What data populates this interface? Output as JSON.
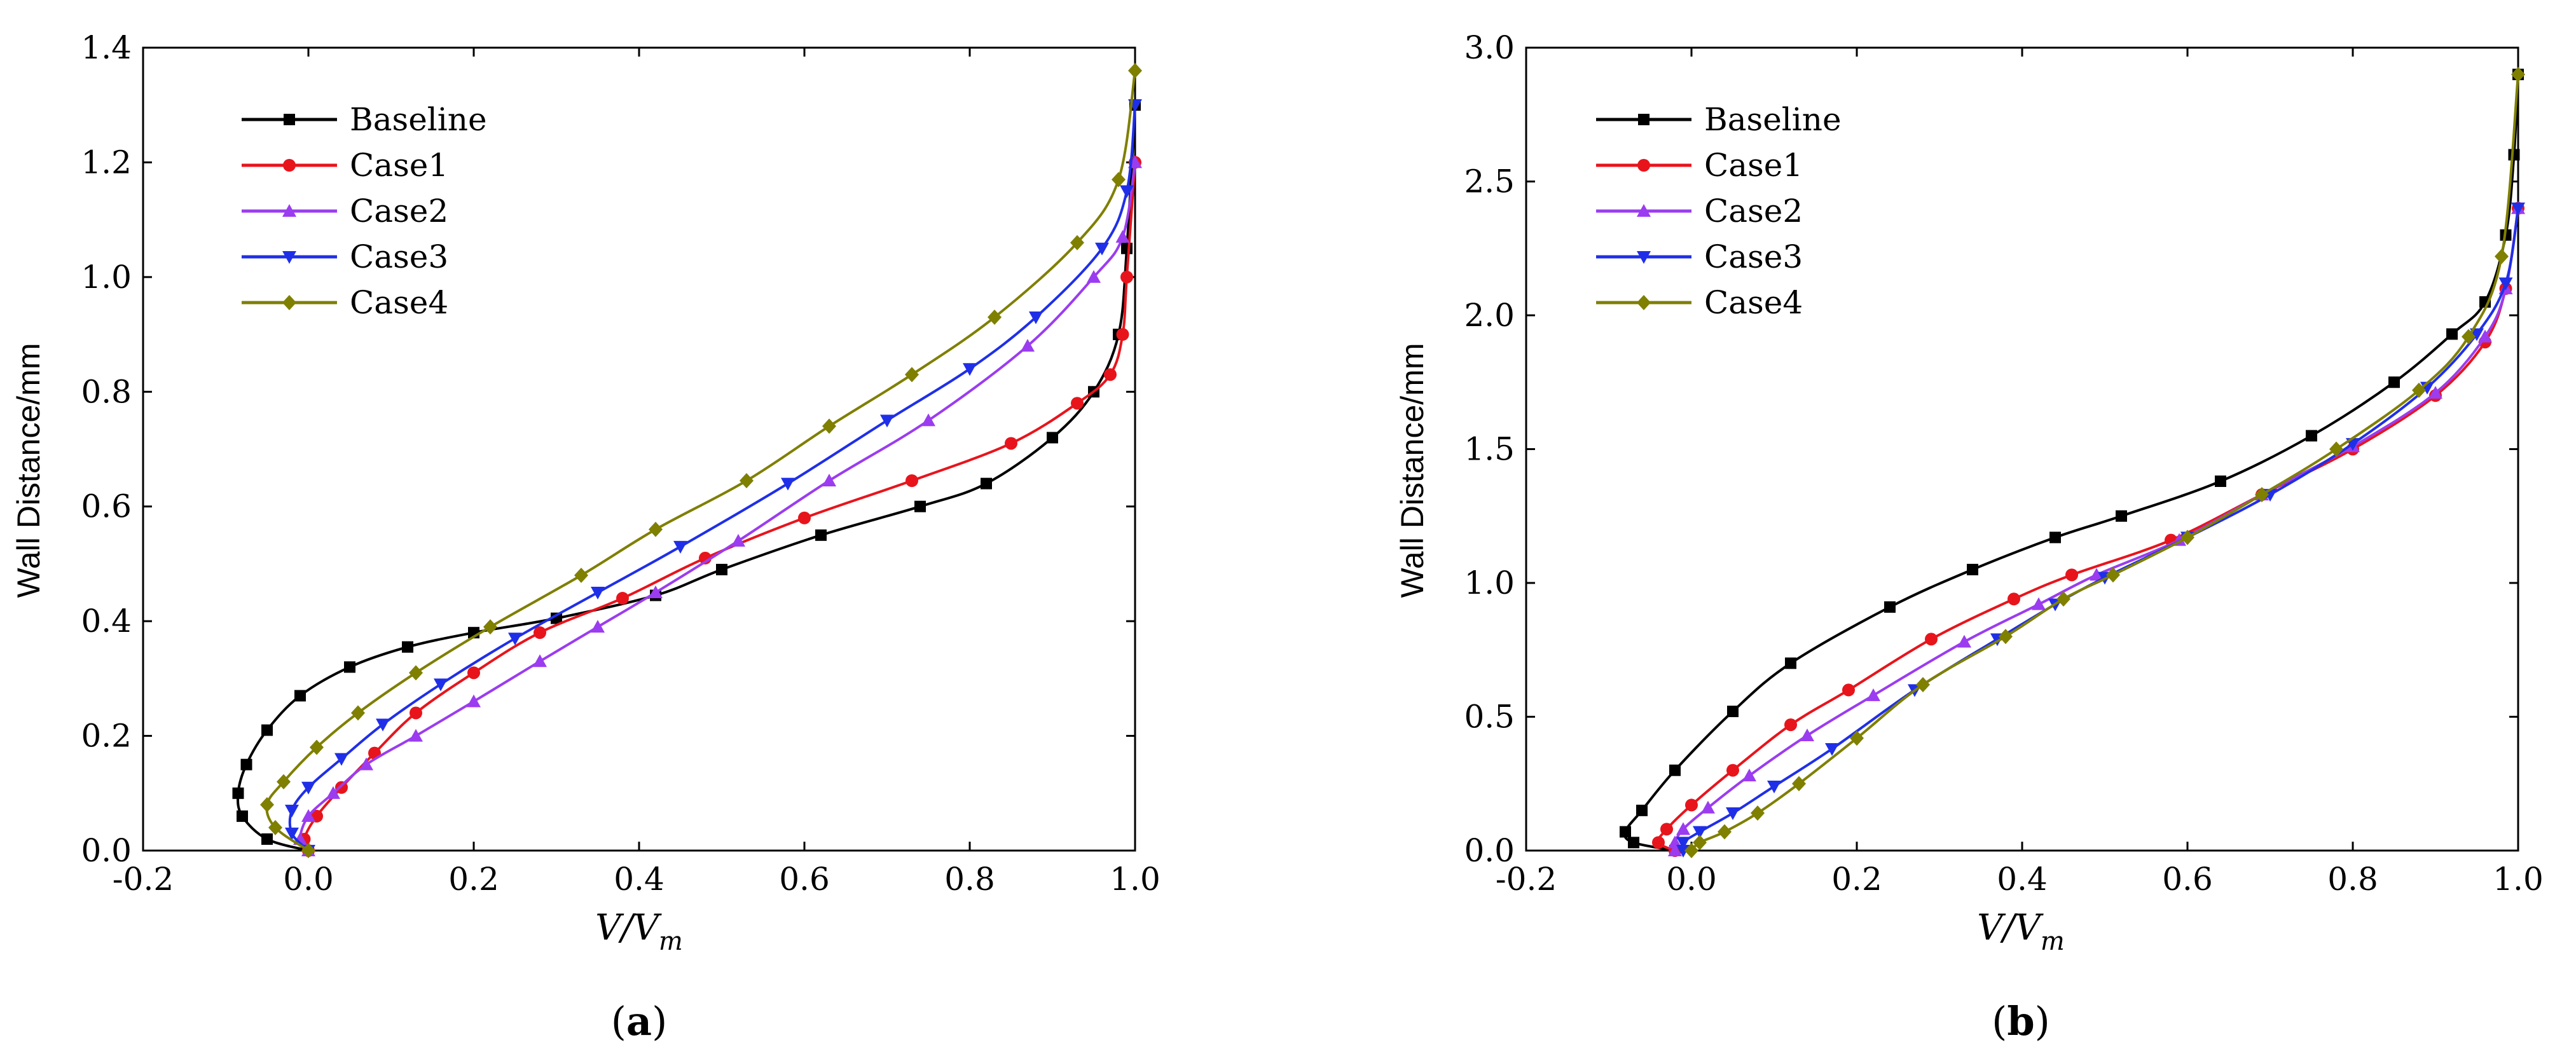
{
  "colors": {
    "Baseline": "#000000",
    "Case1": "#e8141c",
    "Case2": "#9b3cf0",
    "Case3": "#1f2fe8",
    "Case4": "#7f7f00"
  },
  "markers": {
    "Baseline": "square",
    "Case1": "circle",
    "Case2": "triangle-up",
    "Case3": "triangle-down",
    "Case4": "diamond"
  },
  "chart_data": [
    {
      "type": "line",
      "panel_label": "a",
      "xlabel_main": "V/V",
      "xlabel_sub": "m",
      "ylabel": "Wall Distance/mm",
      "xlim": [
        -0.2,
        1.0
      ],
      "ylim": [
        0.0,
        1.4
      ],
      "xticks": [
        -0.2,
        0.0,
        0.2,
        0.4,
        0.6,
        0.8,
        1.0
      ],
      "xtick_labels": [
        "-0.2",
        "0.0",
        "0.2",
        "0.4",
        "0.6",
        "0.8",
        "1.0"
      ],
      "yticks": [
        0.0,
        0.2,
        0.4,
        0.6,
        0.8,
        1.0,
        1.2,
        1.4
      ],
      "ytick_labels": [
        "0.0",
        "0.2",
        "0.4",
        "0.6",
        "0.8",
        "1.0",
        "1.2",
        "1.4"
      ],
      "legend_position": "top-left",
      "series": [
        {
          "name": "Baseline",
          "x": [
            0.0,
            -0.05,
            -0.08,
            -0.085,
            -0.075,
            -0.05,
            -0.01,
            0.05,
            0.12,
            0.2,
            0.3,
            0.42,
            0.5,
            0.62,
            0.74,
            0.82,
            0.9,
            0.95,
            0.98,
            0.99,
            1.0
          ],
          "y": [
            0.0,
            0.02,
            0.06,
            0.1,
            0.15,
            0.21,
            0.27,
            0.32,
            0.355,
            0.38,
            0.405,
            0.445,
            0.49,
            0.55,
            0.6,
            0.64,
            0.72,
            0.8,
            0.9,
            1.05,
            1.3
          ]
        },
        {
          "name": "Case1",
          "x": [
            0.0,
            -0.005,
            0.01,
            0.04,
            0.08,
            0.13,
            0.2,
            0.28,
            0.38,
            0.48,
            0.6,
            0.73,
            0.85,
            0.93,
            0.97,
            0.985,
            0.99,
            1.0
          ],
          "y": [
            0.0,
            0.02,
            0.06,
            0.11,
            0.17,
            0.24,
            0.31,
            0.38,
            0.44,
            0.51,
            0.58,
            0.645,
            0.71,
            0.78,
            0.83,
            0.9,
            1.0,
            1.2
          ]
        },
        {
          "name": "Case2",
          "x": [
            0.0,
            -0.01,
            0.0,
            0.03,
            0.07,
            0.13,
            0.2,
            0.28,
            0.35,
            0.42,
            0.52,
            0.63,
            0.75,
            0.87,
            0.95,
            0.985,
            1.0
          ],
          "y": [
            0.0,
            0.02,
            0.06,
            0.1,
            0.15,
            0.2,
            0.26,
            0.33,
            0.39,
            0.45,
            0.54,
            0.645,
            0.75,
            0.88,
            1.0,
            1.07,
            1.2
          ]
        },
        {
          "name": "Case3",
          "x": [
            0.0,
            -0.02,
            -0.02,
            0.0,
            0.04,
            0.09,
            0.16,
            0.25,
            0.35,
            0.45,
            0.58,
            0.7,
            0.8,
            0.88,
            0.96,
            0.99,
            1.0
          ],
          "y": [
            0.0,
            0.03,
            0.07,
            0.11,
            0.16,
            0.22,
            0.29,
            0.37,
            0.45,
            0.53,
            0.64,
            0.75,
            0.84,
            0.93,
            1.05,
            1.15,
            1.3
          ]
        },
        {
          "name": "Case4",
          "x": [
            0.0,
            -0.04,
            -0.05,
            -0.03,
            0.01,
            0.06,
            0.13,
            0.22,
            0.33,
            0.42,
            0.53,
            0.63,
            0.73,
            0.83,
            0.93,
            0.98,
            1.0
          ],
          "y": [
            0.0,
            0.04,
            0.08,
            0.12,
            0.18,
            0.24,
            0.31,
            0.39,
            0.48,
            0.56,
            0.645,
            0.74,
            0.83,
            0.93,
            1.06,
            1.17,
            1.36
          ]
        }
      ]
    },
    {
      "type": "line",
      "panel_label": "b",
      "xlabel_main": "V/V",
      "xlabel_sub": "m",
      "ylabel": "Wall Distance/mm",
      "xlim": [
        -0.2,
        1.0
      ],
      "ylim": [
        0.0,
        3.0
      ],
      "xticks": [
        -0.2,
        0.0,
        0.2,
        0.4,
        0.6,
        0.8,
        1.0
      ],
      "xtick_labels": [
        "-0.2",
        "0.0",
        "0.2",
        "0.4",
        "0.6",
        "0.8",
        "1.0"
      ],
      "yticks": [
        0.0,
        0.5,
        1.0,
        1.5,
        2.0,
        2.5,
        3.0
      ],
      "ytick_labels": [
        "0.0",
        "0.5",
        "1.0",
        "1.5",
        "2.0",
        "2.5",
        "3.0"
      ],
      "legend_position": "top-left",
      "series": [
        {
          "name": "Baseline",
          "x": [
            -0.02,
            -0.07,
            -0.08,
            -0.06,
            -0.02,
            0.05,
            0.12,
            0.24,
            0.34,
            0.44,
            0.52,
            0.64,
            0.75,
            0.85,
            0.92,
            0.96,
            0.985,
            0.995,
            1.0
          ],
          "y": [
            0.0,
            0.03,
            0.07,
            0.15,
            0.3,
            0.52,
            0.7,
            0.91,
            1.05,
            1.17,
            1.25,
            1.38,
            1.55,
            1.75,
            1.93,
            2.05,
            2.3,
            2.6,
            2.9
          ]
        },
        {
          "name": "Case1",
          "x": [
            -0.02,
            -0.04,
            -0.03,
            0.0,
            0.05,
            0.12,
            0.19,
            0.29,
            0.39,
            0.46,
            0.58,
            0.69,
            0.8,
            0.9,
            0.96,
            0.985,
            1.0
          ],
          "y": [
            0.0,
            0.03,
            0.08,
            0.17,
            0.3,
            0.47,
            0.6,
            0.79,
            0.94,
            1.03,
            1.16,
            1.33,
            1.5,
            1.7,
            1.9,
            2.1,
            2.4
          ]
        },
        {
          "name": "Case2",
          "x": [
            -0.02,
            -0.02,
            -0.01,
            0.02,
            0.07,
            0.14,
            0.22,
            0.33,
            0.42,
            0.49,
            0.59,
            0.69,
            0.8,
            0.9,
            0.96,
            0.985,
            1.0
          ],
          "y": [
            0.0,
            0.03,
            0.08,
            0.16,
            0.28,
            0.43,
            0.58,
            0.78,
            0.92,
            1.03,
            1.16,
            1.33,
            1.51,
            1.71,
            1.92,
            2.1,
            2.4
          ]
        },
        {
          "name": "Case3",
          "x": [
            -0.01,
            -0.01,
            0.01,
            0.05,
            0.1,
            0.17,
            0.27,
            0.37,
            0.44,
            0.5,
            0.6,
            0.7,
            0.8,
            0.89,
            0.95,
            0.985,
            1.0
          ],
          "y": [
            0.0,
            0.03,
            0.07,
            0.14,
            0.24,
            0.38,
            0.6,
            0.79,
            0.92,
            1.02,
            1.17,
            1.33,
            1.52,
            1.73,
            1.93,
            2.12,
            2.4
          ]
        },
        {
          "name": "Case4",
          "x": [
            0.0,
            0.01,
            0.04,
            0.08,
            0.13,
            0.2,
            0.28,
            0.38,
            0.45,
            0.51,
            0.6,
            0.69,
            0.78,
            0.88,
            0.94,
            0.98,
            1.0
          ],
          "y": [
            0.0,
            0.03,
            0.07,
            0.14,
            0.25,
            0.42,
            0.62,
            0.8,
            0.94,
            1.03,
            1.17,
            1.33,
            1.5,
            1.72,
            1.92,
            2.22,
            2.9
          ]
        }
      ]
    }
  ]
}
